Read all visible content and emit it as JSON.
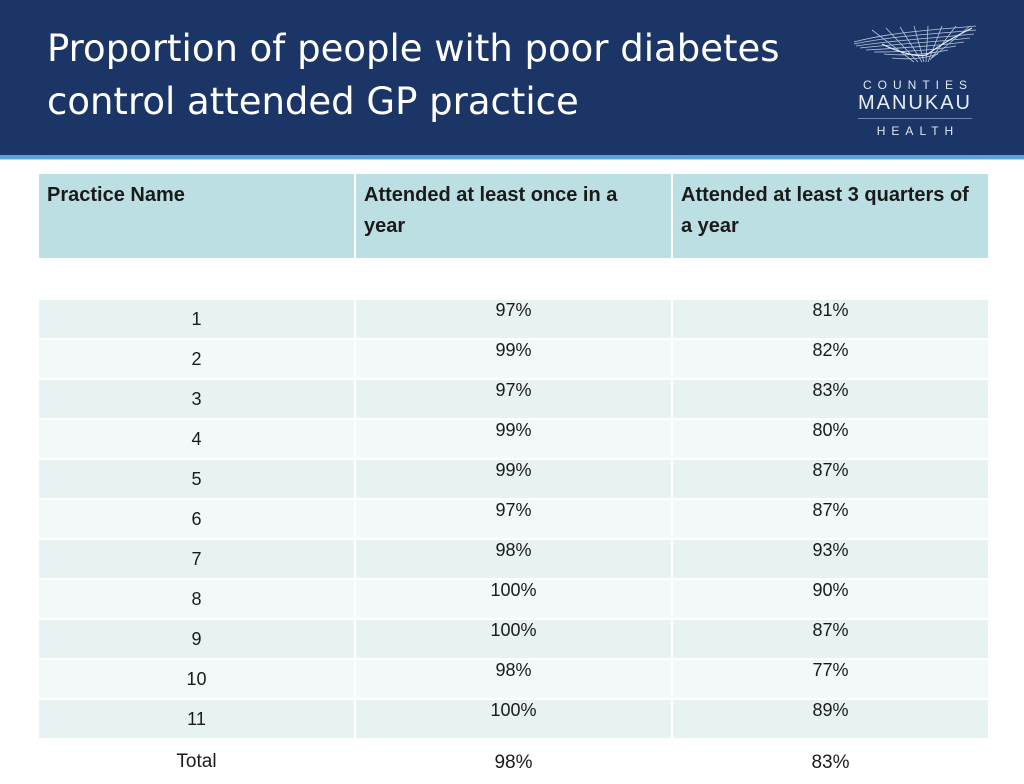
{
  "slide": {
    "title": "Proportion of people with poor diabetes control attended GP practice"
  },
  "logo": {
    "line1": "COUNTIES",
    "line2": "MANUKAU",
    "line3": "HEALTH"
  },
  "table": {
    "headers": [
      "Practice Name",
      "Attended at least once in a year",
      "Attended at least 3 quarters of a year"
    ],
    "rows": [
      [
        "1",
        "97%",
        "81%"
      ],
      [
        "2",
        "99%",
        "82%"
      ],
      [
        "3",
        "97%",
        "83%"
      ],
      [
        "4",
        "99%",
        "80%"
      ],
      [
        "5",
        "99%",
        "87%"
      ],
      [
        "6",
        "97%",
        "87%"
      ],
      [
        "7",
        "98%",
        "93%"
      ],
      [
        "8",
        "100%",
        "90%"
      ],
      [
        "9",
        "100%",
        "87%"
      ],
      [
        "10",
        "98%",
        "77%"
      ],
      [
        "11",
        "100%",
        "89%"
      ]
    ],
    "total": [
      "Total",
      "98%",
      "83%"
    ]
  },
  "colors": {
    "header_bg": "#1c3567",
    "table_header_bg": "#bcdfe3",
    "row_band_a": "#e7f2f3",
    "row_band_b": "#f3f9f9"
  }
}
